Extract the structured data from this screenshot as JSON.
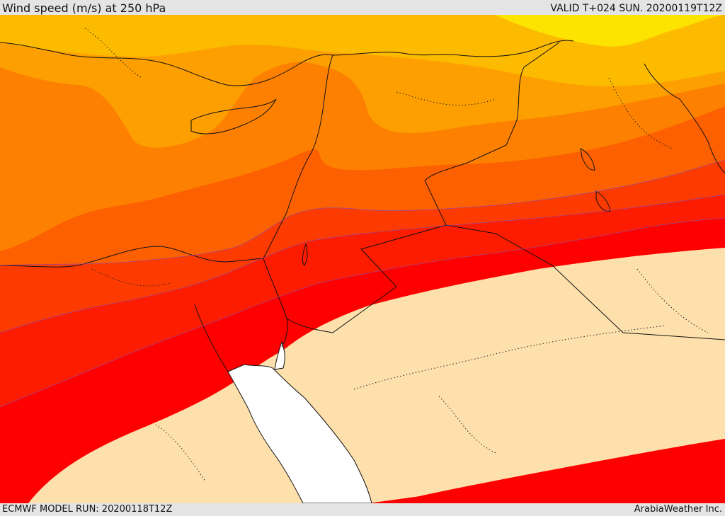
{
  "header": {
    "title": "Wind speed (m/s) at 250 hPa",
    "valid": "VALID T+024 SUN. 20200119T12Z"
  },
  "footer": {
    "model_run": "ECMWF MODEL RUN: 20200118T12Z",
    "credit": "ArabiaWeather Inc."
  },
  "colors": {
    "band_yellow": "#fde400",
    "band_light_orange": "#fdbb00",
    "band_orange": "#fd9f00",
    "band_dark_orange": "#fd8000",
    "band_red_orange": "#fd6000",
    "band_orange_red": "#fd3a00",
    "band_red": "#fd1c00",
    "band_pure_red": "#ff0000",
    "calm_region": "#fde0ac",
    "sea": "#ffffff",
    "border": "#111111"
  }
}
